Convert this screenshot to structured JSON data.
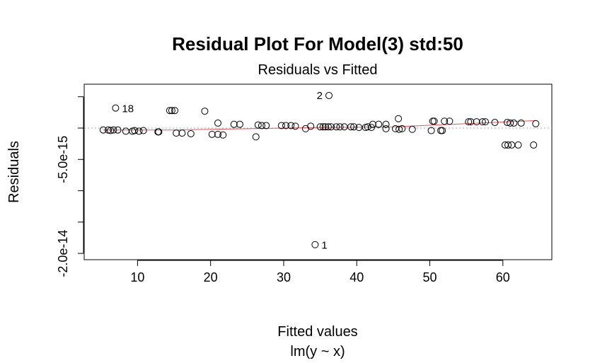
{
  "chart_data": {
    "type": "scatter",
    "title": "Residual Plot For Model(3) std:50",
    "subtitle": "Residuals vs Fitted",
    "xlabel": "Fitted values",
    "xlabel2": "lm(y ~ x)",
    "ylabel": "Residuals",
    "xlim": [
      2.7,
      66.7
    ],
    "ylim": [
      -2.1e-14,
      7e-15
    ],
    "x_ticks": [
      10,
      20,
      30,
      40,
      50,
      60
    ],
    "x_tick_labels": [
      "10",
      "20",
      "30",
      "40",
      "50",
      "60"
    ],
    "y_ticks": [
      5e-15,
      0,
      -5e-15,
      -1e-14,
      -1.5e-14,
      -2e-14
    ],
    "y_tick_labels": [
      "",
      "-5.0e-15",
      "",
      "-2.0e-14"
    ],
    "y_label_positions": [
      0,
      -5e-15,
      -1.5e-14,
      -2e-14
    ],
    "zero_line": 0,
    "smooth_line_color": "#e8545f",
    "zero_line_color": "#aaaaaa",
    "point_labels": [
      {
        "text": "18",
        "x": 7.0,
        "y": 3.2e-15
      },
      {
        "text": "2",
        "x": 36.2,
        "y": 5.2e-15
      },
      {
        "text": "1",
        "x": 34.3,
        "y": -1.86e-14
      }
    ],
    "points": [
      {
        "x": 5.3,
        "y": -3e-16
      },
      {
        "x": 6.0,
        "y": -3e-16
      },
      {
        "x": 6.3,
        "y": -4e-16
      },
      {
        "x": 6.7,
        "y": -3e-16
      },
      {
        "x": 7.0,
        "y": 3.2e-15
      },
      {
        "x": 7.3,
        "y": -3e-16
      },
      {
        "x": 8.4,
        "y": -5e-16
      },
      {
        "x": 9.3,
        "y": -5e-16
      },
      {
        "x": 9.6,
        "y": -4e-16
      },
      {
        "x": 10.2,
        "y": -5e-16
      },
      {
        "x": 10.8,
        "y": -4e-16
      },
      {
        "x": 12.8,
        "y": -6e-16
      },
      {
        "x": 12.9,
        "y": -6e-16
      },
      {
        "x": 14.4,
        "y": 2.8e-15
      },
      {
        "x": 14.7,
        "y": 2.8e-15
      },
      {
        "x": 15.1,
        "y": 2.8e-15
      },
      {
        "x": 15.3,
        "y": -8e-16
      },
      {
        "x": 16.1,
        "y": -8e-16
      },
      {
        "x": 17.3,
        "y": -9e-16
      },
      {
        "x": 19.2,
        "y": 2.7e-15
      },
      {
        "x": 20.2,
        "y": -1e-15
      },
      {
        "x": 21.0,
        "y": 8e-16
      },
      {
        "x": 21.0,
        "y": -1e-15
      },
      {
        "x": 21.7,
        "y": -1.1e-15
      },
      {
        "x": 23.2,
        "y": 6e-16
      },
      {
        "x": 24.0,
        "y": 6e-16
      },
      {
        "x": 26.2,
        "y": -1.4e-15
      },
      {
        "x": 26.5,
        "y": 5e-16
      },
      {
        "x": 27.0,
        "y": 4e-16
      },
      {
        "x": 27.6,
        "y": 4e-16
      },
      {
        "x": 29.7,
        "y": 4e-16
      },
      {
        "x": 30.3,
        "y": 4e-16
      },
      {
        "x": 31.0,
        "y": 4e-16
      },
      {
        "x": 31.6,
        "y": 3e-16
      },
      {
        "x": 33.0,
        "y": -1e-16
      },
      {
        "x": 33.7,
        "y": 3e-16
      },
      {
        "x": 35.0,
        "y": 2e-16
      },
      {
        "x": 35.4,
        "y": 2e-16
      },
      {
        "x": 35.7,
        "y": 2e-16
      },
      {
        "x": 36.1,
        "y": 2e-16
      },
      {
        "x": 36.2,
        "y": 5.2e-15
      },
      {
        "x": 36.5,
        "y": 2e-16
      },
      {
        "x": 37.2,
        "y": 2e-16
      },
      {
        "x": 37.7,
        "y": 2e-16
      },
      {
        "x": 38.3,
        "y": 2e-16
      },
      {
        "x": 39.2,
        "y": 2e-16
      },
      {
        "x": 39.6,
        "y": 2e-16
      },
      {
        "x": 40.3,
        "y": 1e-16
      },
      {
        "x": 41.2,
        "y": 1e-16
      },
      {
        "x": 41.5,
        "y": 2e-16
      },
      {
        "x": 42.0,
        "y": 1e-16
      },
      {
        "x": 42.2,
        "y": 6e-16
      },
      {
        "x": 43.0,
        "y": 6e-16
      },
      {
        "x": 44.0,
        "y": 6e-16
      },
      {
        "x": 44.0,
        "y": -1e-16
      },
      {
        "x": 45.3,
        "y": -1e-16
      },
      {
        "x": 45.7,
        "y": 1.5e-15
      },
      {
        "x": 45.8,
        "y": -2e-16
      },
      {
        "x": 46.2,
        "y": -1e-16
      },
      {
        "x": 47.6,
        "y": -2e-16
      },
      {
        "x": 50.2,
        "y": -4e-16
      },
      {
        "x": 50.4,
        "y": 1.1e-15
      },
      {
        "x": 50.6,
        "y": 1.1e-15
      },
      {
        "x": 51.5,
        "y": -4e-16
      },
      {
        "x": 51.7,
        "y": -4e-16
      },
      {
        "x": 52.0,
        "y": 1.1e-15
      },
      {
        "x": 52.7,
        "y": 1.1e-15
      },
      {
        "x": 55.3,
        "y": 1e-15
      },
      {
        "x": 55.6,
        "y": 1e-15
      },
      {
        "x": 56.4,
        "y": 1e-15
      },
      {
        "x": 57.2,
        "y": 1e-15
      },
      {
        "x": 57.6,
        "y": 1e-15
      },
      {
        "x": 58.9,
        "y": 9e-16
      },
      {
        "x": 60.3,
        "y": -2.7e-15
      },
      {
        "x": 60.6,
        "y": 9e-16
      },
      {
        "x": 60.7,
        "y": -2.7e-15
      },
      {
        "x": 61.0,
        "y": 8e-16
      },
      {
        "x": 61.2,
        "y": -2.7e-15
      },
      {
        "x": 61.5,
        "y": 8e-16
      },
      {
        "x": 62.1,
        "y": -2.7e-15
      },
      {
        "x": 62.5,
        "y": 8e-16
      },
      {
        "x": 64.2,
        "y": -2.7e-15
      },
      {
        "x": 64.5,
        "y": 7e-16
      },
      {
        "x": 34.3,
        "y": -1.86e-14
      }
    ],
    "smooth_line": [
      {
        "x": 5.3,
        "y": -3e-16
      },
      {
        "x": 15,
        "y": -3e-16
      },
      {
        "x": 25,
        "y": -1e-16
      },
      {
        "x": 35,
        "y": 1e-16
      },
      {
        "x": 45,
        "y": 2e-16
      },
      {
        "x": 55,
        "y": 7e-16
      },
      {
        "x": 64.5,
        "y": 1.2e-15
      }
    ]
  }
}
